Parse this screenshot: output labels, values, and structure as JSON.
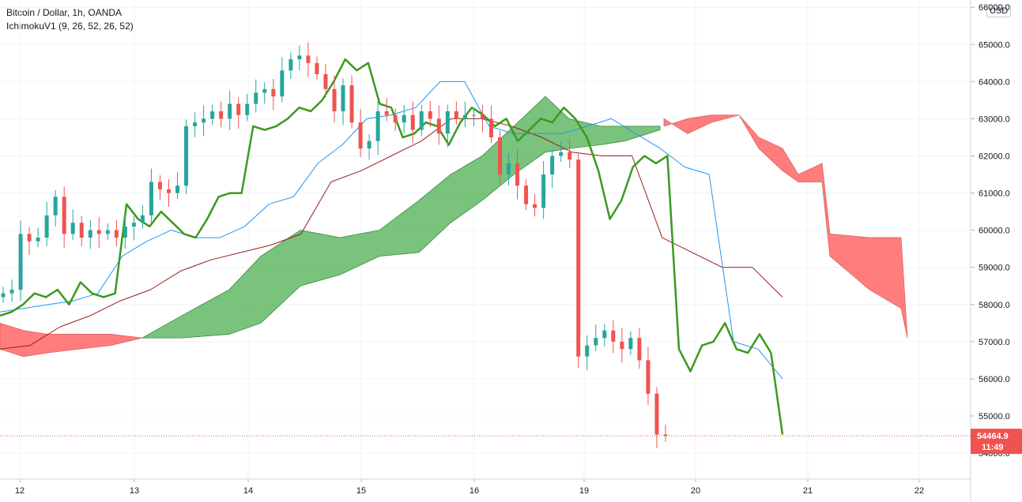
{
  "legend": {
    "symbol": "Bitcoin / Dollar, 1h, OANDA",
    "indicator": "IchimokuV1 (9, 26, 52, 26, 52)"
  },
  "currency_button": "USD",
  "last_price_tag": {
    "price": "54464.9",
    "countdown": "11:49"
  },
  "colors": {
    "up": "#26a69a",
    "down": "#ef5350",
    "cloud_bull": "#4caf50",
    "cloud_bear": "#ff5252",
    "lagging": "#3a9a1d",
    "conversion": "#2196f3",
    "base": "#9c1c1c"
  },
  "chart_data": {
    "type": "candlestick",
    "title": "Bitcoin / Dollar, 1h, OANDA",
    "ylim": [
      53300,
      66000
    ],
    "y_ticks": [
      "54000.0",
      "55000.0",
      "56000.0",
      "57000.0",
      "58000.0",
      "59000.0",
      "60000.0",
      "61000.0",
      "62000.0",
      "63000.0",
      "64000.0",
      "65000.0",
      "66000.0"
    ],
    "x_ticks": [
      "12",
      "13",
      "14",
      "15",
      "16",
      "19",
      "20",
      "21",
      "22"
    ],
    "last_price": 54464.9,
    "ohlc_close_path": [
      58300,
      58400,
      59900,
      59700,
      59800,
      60400,
      60900,
      59900,
      60200,
      59800,
      60000,
      59900,
      60000,
      59800,
      60100,
      60200,
      60400,
      61300,
      61100,
      61000,
      61200,
      62800,
      62900,
      63000,
      63200,
      63000,
      63400,
      63100,
      63400,
      63700,
      63800,
      63600,
      64300,
      64600,
      64700,
      64500,
      64200,
      63800,
      63200,
      63900,
      62900,
      62200,
      62400,
      63200,
      63100,
      62900,
      63100,
      62700,
      63200,
      63000,
      62600,
      63200,
      63000,
      63100,
      63100,
      63000,
      62500,
      61500,
      61800,
      61200,
      60700,
      60600,
      61500,
      62000,
      62100,
      61900,
      56600,
      56900,
      57100,
      57300,
      57000,
      56800,
      57100,
      56500,
      55600,
      54500,
      54465
    ],
    "ichimoku": {
      "lagging_span": [
        57700,
        57800,
        58000,
        58300,
        58200,
        58400,
        58000,
        58600,
        58300,
        58200,
        58300,
        60700,
        60300,
        60100,
        60500,
        60200,
        59900,
        59800,
        60300,
        60900,
        61000,
        61000,
        62800,
        62700,
        62800,
        63000,
        63300,
        63200,
        63500,
        64000,
        64600,
        64300,
        64500,
        63400,
        63300,
        62500,
        62600,
        62900,
        62800,
        62300,
        62900,
        63300,
        63100,
        62800,
        63000,
        62400,
        62700,
        63000,
        62900,
        63300,
        63000,
        62500,
        61600,
        60300,
        60800,
        61700,
        62000,
        61800,
        62000,
        56800,
        56200,
        56900,
        57000,
        57500,
        56800,
        56700,
        57200,
        56700,
        54500
      ],
      "conversion_line": [
        57800,
        57900,
        58000,
        58100,
        58300,
        59300,
        59700,
        60000,
        59800,
        59800,
        60100,
        60700,
        60900,
        61800,
        62300,
        63000,
        63100,
        63300,
        64000,
        64000,
        62800,
        62600,
        62600,
        62600,
        62800,
        63000,
        62600,
        62200,
        61700,
        61500,
        57000,
        56800,
        56000
      ],
      "base_line": [
        56800,
        56900,
        57400,
        57700,
        58100,
        58400,
        58900,
        59200,
        59400,
        59600,
        59900,
        61300,
        61600,
        62000,
        62400,
        63000,
        63000,
        62800,
        62500,
        62100,
        62000,
        62000,
        59800,
        59400,
        59000,
        59000,
        58200
      ],
      "cloud": [
        {
          "kind": "bearish",
          "span_a_start": 57100,
          "span_a_end": 57050
        },
        {
          "kind": "bullish",
          "span_a_max": 63700,
          "span_b_min": 57050
        },
        {
          "kind": "bearish",
          "span_a_max": 63100,
          "span_b_min": 57100
        }
      ]
    }
  }
}
